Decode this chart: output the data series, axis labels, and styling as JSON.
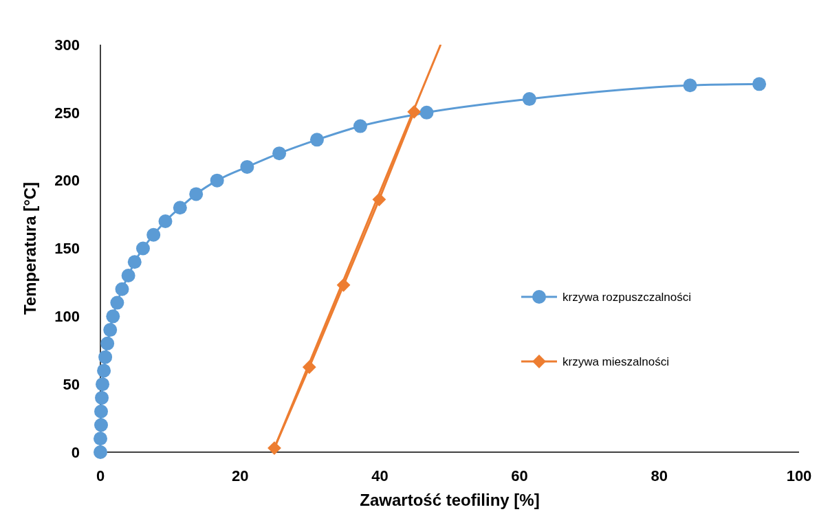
{
  "chart_data": {
    "type": "line",
    "xlabel": "Zawartość teofiliny [%]",
    "ylabel": "Temperatura [°C]",
    "xlim": [
      0,
      100
    ],
    "xticks": [
      0,
      20,
      40,
      60,
      80,
      100
    ],
    "ylim": [
      0,
      300
    ],
    "yticks": [
      0,
      50,
      100,
      150,
      200,
      250,
      300
    ],
    "grid": false,
    "legend": "right",
    "series": [
      {
        "name": "krzywa rozpuszczalności",
        "color": "#5b9bd5",
        "marker": "circle",
        "x": [
          0,
          0,
          0.1,
          0.1,
          0.2,
          0.3,
          0.5,
          0.7,
          1.0,
          1.4,
          1.8,
          2.4,
          3.1,
          4.0,
          4.9,
          6.1,
          7.6,
          9.3,
          11.4,
          13.7,
          16.7,
          21.0,
          25.6,
          31.0,
          37.2,
          46.7,
          61.4,
          84.4,
          94.3
        ],
        "values": [
          0,
          10,
          20,
          30,
          40,
          50,
          60,
          70,
          80,
          90,
          100,
          110,
          120,
          130,
          140,
          150,
          160,
          170,
          180,
          190,
          200,
          210,
          220,
          230,
          240,
          250,
          260,
          270,
          271
        ]
      },
      {
        "name": "krzywa mieszalności",
        "color": "#ed7d31",
        "marker": "diamond",
        "x": [
          24.9,
          29.9,
          34.8,
          39.9,
          44.9
        ],
        "values": [
          3,
          62.6,
          123,
          186,
          250.5
        ]
      },
      {
        "color": "#ed7d31",
        "marker": "none",
        "x": [
          24.9,
          48.7
        ],
        "values": [
          3,
          300
        ]
      }
    ]
  }
}
